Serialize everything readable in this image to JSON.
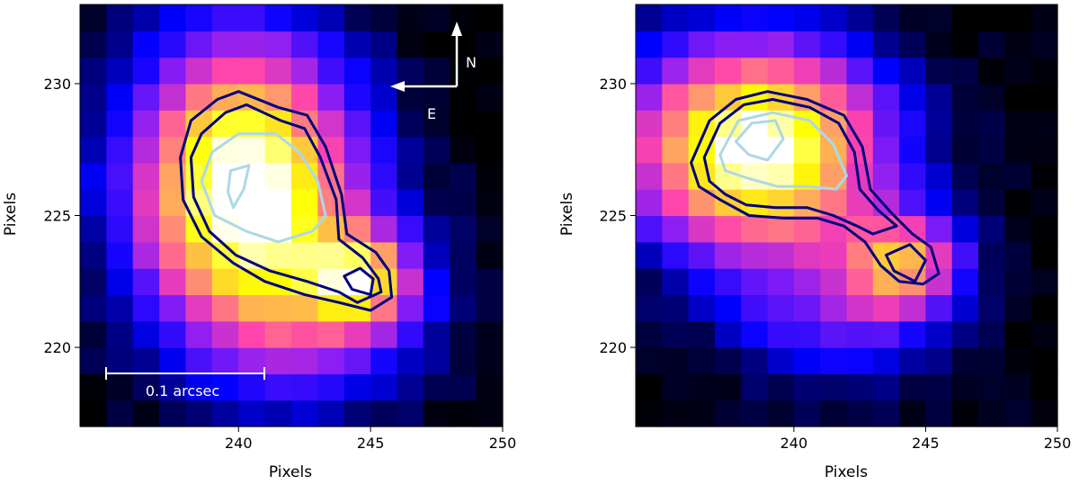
{
  "chart_data": [
    {
      "type": "heatmap",
      "xlabel": "Pixels",
      "ylabel": "Pixels",
      "xlim": [
        234,
        250
      ],
      "ylim": [
        217,
        233
      ],
      "x_ticks": [
        240,
        245,
        250
      ],
      "y_ticks": [
        220,
        225,
        230
      ],
      "grid": false,
      "colormap": "gnuplot2",
      "color_stops": [
        "#000000",
        "#0000ff",
        "#8a1df5",
        "#ff44ac",
        "#ffa264",
        "#ffff00",
        "#ffffff"
      ],
      "peaks": [
        {
          "x": 240.2,
          "y": 226.2,
          "amp": 1.0,
          "sx": 2.8,
          "sy": 3.6
        },
        {
          "x": 244.6,
          "y": 222.6,
          "amp": 0.55,
          "sx": 1.3,
          "sy": 1.2
        },
        {
          "x": 243.0,
          "y": 221.5,
          "amp": 0.3,
          "sx": 3.0,
          "sy": 2.5
        }
      ],
      "contours": [
        {
          "color": "#000080",
          "points": [
            [
              238.2,
              228.6
            ],
            [
              239.2,
              229.4
            ],
            [
              240.0,
              229.7
            ],
            [
              241.5,
              229.1
            ],
            [
              242.6,
              228.8
            ],
            [
              243.3,
              227.6
            ],
            [
              243.9,
              225.8
            ],
            [
              244.1,
              224.3
            ],
            [
              245.2,
              223.6
            ],
            [
              245.7,
              222.9
            ],
            [
              245.8,
              221.9
            ],
            [
              245.0,
              221.4
            ],
            [
              243.8,
              221.7
            ],
            [
              242.5,
              222.0
            ],
            [
              241.0,
              222.5
            ],
            [
              239.8,
              223.2
            ],
            [
              238.6,
              224.2
            ],
            [
              237.9,
              225.6
            ],
            [
              237.8,
              227.2
            ]
          ]
        },
        {
          "color": "#000080",
          "points": [
            [
              238.6,
              228.1
            ],
            [
              239.5,
              228.9
            ],
            [
              240.3,
              229.2
            ],
            [
              241.6,
              228.6
            ],
            [
              242.5,
              228.3
            ],
            [
              243.1,
              227.2
            ],
            [
              243.7,
              225.6
            ],
            [
              243.8,
              224.1
            ],
            [
              244.7,
              223.4
            ],
            [
              245.3,
              222.6
            ],
            [
              245.4,
              222.1
            ],
            [
              244.5,
              221.7
            ],
            [
              243.8,
              222.1
            ],
            [
              242.6,
              222.5
            ],
            [
              241.2,
              222.9
            ],
            [
              239.9,
              223.5
            ],
            [
              238.9,
              224.4
            ],
            [
              238.3,
              225.7
            ],
            [
              238.2,
              227.2
            ]
          ]
        },
        {
          "color": "#000080",
          "points": [
            [
              244.0,
              222.7
            ],
            [
              244.6,
              223.0
            ],
            [
              245.1,
              222.6
            ],
            [
              245.0,
              222.0
            ],
            [
              244.3,
              222.2
            ]
          ]
        },
        {
          "color": "#add8e6",
          "points": [
            [
              239.0,
              227.4
            ],
            [
              240.0,
              228.1
            ],
            [
              241.4,
              228.1
            ],
            [
              242.3,
              227.4
            ],
            [
              243.0,
              226.3
            ],
            [
              243.3,
              225.0
            ],
            [
              242.8,
              224.4
            ],
            [
              241.5,
              224.0
            ],
            [
              240.3,
              224.4
            ],
            [
              239.1,
              225.0
            ],
            [
              238.6,
              226.3
            ]
          ]
        },
        {
          "color": "#add8e6",
          "points": [
            [
              239.7,
              226.7
            ],
            [
              240.4,
              226.9
            ],
            [
              240.2,
              226.0
            ],
            [
              239.8,
              225.3
            ],
            [
              239.6,
              225.9
            ]
          ]
        }
      ],
      "annotations": {
        "north": "N",
        "east": "E",
        "scalebar": "0.1 arcsec"
      }
    },
    {
      "type": "heatmap",
      "xlabel": "Pixels",
      "ylabel": "Pixels",
      "xlim": [
        234,
        250
      ],
      "ylim": [
        217,
        233
      ],
      "x_ticks": [
        240,
        245,
        250
      ],
      "y_ticks": [
        220,
        225,
        230
      ],
      "grid": false,
      "colormap": "gnuplot2",
      "color_stops": [
        "#000000",
        "#0000ff",
        "#8a1df5",
        "#ff44ac",
        "#ffa264",
        "#ffff00",
        "#ffffff"
      ],
      "peaks": [
        {
          "x": 238.6,
          "y": 227.6,
          "amp": 1.0,
          "sx": 3.2,
          "sy": 2.6
        },
        {
          "x": 244.2,
          "y": 223.2,
          "amp": 0.55,
          "sx": 1.5,
          "sy": 1.3
        },
        {
          "x": 241.5,
          "y": 221.5,
          "amp": 0.25,
          "sx": 2.8,
          "sy": 2.0
        }
      ],
      "contours": [
        {
          "color": "#000080",
          "points": [
            [
              236.1,
              227.0
            ],
            [
              236.8,
              228.6
            ],
            [
              237.8,
              229.4
            ],
            [
              239.0,
              229.7
            ],
            [
              240.5,
              229.4
            ],
            [
              241.9,
              228.8
            ],
            [
              242.6,
              227.6
            ],
            [
              242.9,
              226.0
            ],
            [
              243.7,
              225.1
            ],
            [
              244.5,
              224.3
            ],
            [
              245.2,
              223.8
            ],
            [
              245.5,
              222.8
            ],
            [
              244.9,
              222.4
            ],
            [
              244.0,
              222.5
            ],
            [
              243.3,
              223.1
            ],
            [
              242.7,
              224.0
            ],
            [
              241.9,
              224.6
            ],
            [
              240.9,
              224.9
            ],
            [
              239.6,
              224.9
            ],
            [
              238.3,
              225.0
            ],
            [
              237.2,
              225.6
            ],
            [
              236.4,
              226.1
            ]
          ]
        },
        {
          "color": "#000080",
          "points": [
            [
              236.6,
              227.2
            ],
            [
              237.2,
              228.5
            ],
            [
              238.1,
              229.2
            ],
            [
              239.2,
              229.4
            ],
            [
              240.6,
              229.1
            ],
            [
              241.7,
              228.5
            ],
            [
              242.3,
              227.4
            ],
            [
              242.5,
              226.0
            ],
            [
              243.2,
              225.2
            ],
            [
              243.9,
              224.6
            ],
            [
              243.0,
              224.3
            ],
            [
              242.4,
              224.6
            ],
            [
              241.5,
              225.0
            ],
            [
              240.5,
              225.3
            ],
            [
              239.3,
              225.3
            ],
            [
              238.2,
              225.4
            ],
            [
              237.4,
              225.8
            ],
            [
              236.8,
              226.3
            ]
          ]
        },
        {
          "color": "#000080",
          "points": [
            [
              243.5,
              223.5
            ],
            [
              244.4,
              223.9
            ],
            [
              245.0,
              223.3
            ],
            [
              244.6,
              222.5
            ],
            [
              243.8,
              222.9
            ]
          ]
        },
        {
          "color": "#add8e6",
          "points": [
            [
              237.2,
              227.3
            ],
            [
              237.9,
              228.6
            ],
            [
              239.2,
              228.9
            ],
            [
              240.6,
              228.6
            ],
            [
              241.5,
              227.7
            ],
            [
              242.0,
              226.5
            ],
            [
              241.6,
              226.0
            ],
            [
              240.5,
              226.1
            ],
            [
              239.4,
              226.1
            ],
            [
              238.3,
              226.4
            ],
            [
              237.4,
              226.7
            ]
          ]
        },
        {
          "color": "#add8e6",
          "points": [
            [
              237.8,
              227.8
            ],
            [
              238.4,
              228.5
            ],
            [
              239.3,
              228.6
            ],
            [
              239.6,
              227.9
            ],
            [
              239.0,
              227.1
            ],
            [
              238.3,
              227.3
            ]
          ]
        }
      ]
    }
  ]
}
